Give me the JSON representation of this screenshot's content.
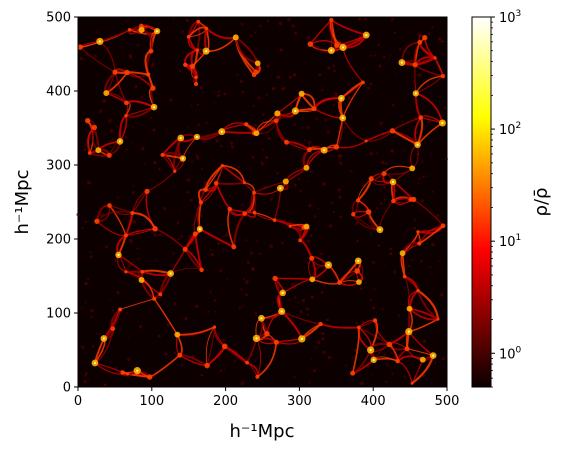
{
  "chart_data": {
    "type": "heatmap",
    "xlabel": "h⁻¹Mpc",
    "ylabel": "h⁻¹Mpc",
    "xlim": [
      0,
      500
    ],
    "ylim": [
      0,
      500
    ],
    "x_ticks": [
      "0",
      "100",
      "200",
      "300",
      "400",
      "500"
    ],
    "y_ticks": [
      "0",
      "100",
      "200",
      "300",
      "400",
      "500"
    ],
    "colorbar": {
      "label": "ρ/ρ̄",
      "scale": "log",
      "range": [
        0.5,
        1000
      ],
      "colormap": "hot",
      "ticks": [
        {
          "value": 1,
          "base": "10",
          "exp": "0"
        },
        {
          "value": 10,
          "base": "10",
          "exp": "1"
        },
        {
          "value": 100,
          "base": "10",
          "exp": "2"
        },
        {
          "value": 1000,
          "base": "10",
          "exp": "3"
        }
      ]
    }
  }
}
